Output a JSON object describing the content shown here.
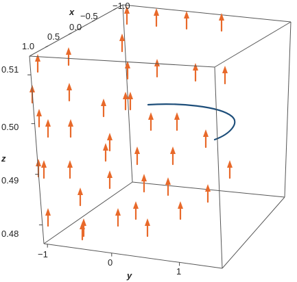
{
  "chart_data": {
    "type": "vector-field-3d",
    "title": "",
    "axes": {
      "x": {
        "label": "x",
        "ticks": [
          "−0.5",
          "0.0",
          "0.5",
          "1.0"
        ],
        "extra_tick": "−1.0"
      },
      "y": {
        "label": "y",
        "ticks": [
          "−1",
          "0",
          "1"
        ]
      },
      "z": {
        "label": "z",
        "ticks": [
          "0.48",
          "0.49",
          "0.50",
          "0.51"
        ]
      }
    },
    "field_direction": "+z",
    "curve": {
      "description_shown": false,
      "points_xyz_hint": "helical path segment near z ≈ 0.50"
    },
    "colors": {
      "arrow": "#e8692a",
      "curve": "#1d4e7a",
      "box": "#555555"
    }
  }
}
